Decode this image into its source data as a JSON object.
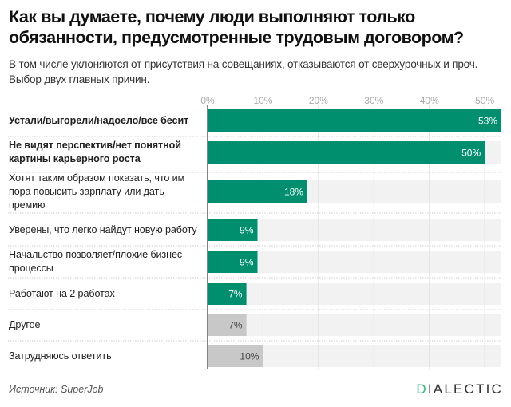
{
  "title": "Как вы думаете, почему люди выполняют только обязанности, предусмотренные трудовым договором?",
  "subtitle": "В том числе уклоняются от присутствия на совещаниях, отказываются от сверхурочных и проч. Выбор двух главных причин.",
  "source": "Источник: SuperJob",
  "logo": {
    "first_letter": "D",
    "rest": "IALECTIC"
  },
  "colors": {
    "primary": "#008f6e",
    "muted": "#c8c8c8",
    "track": "#f2f2f2",
    "grid": "#e0e0e0",
    "logo_accent": "#2fbf78"
  },
  "chart_data": {
    "type": "bar",
    "orientation": "horizontal",
    "title": "Как вы думаете, почему люди выполняют только обязанности, предусмотренные трудовым договором?",
    "xlabel": "",
    "ylabel": "",
    "xlim": [
      0,
      53
    ],
    "x_ticks": [
      0,
      10,
      20,
      30,
      40,
      50
    ],
    "x_tick_labels": [
      "0%",
      "10%",
      "20%",
      "30%",
      "40%",
      "50%"
    ],
    "grid": true,
    "categories": [
      "Устали/выгорели/надоело/все бесит",
      "Не видят перспектив/нет понятной картины карьерного роста",
      "Хотят таким образом показать, что им пора повысить зарплату или дать премию",
      "Уверены, что легко найдут новую работу",
      "Начальство позволяет/плохие бизнес-процессы",
      "Работают на 2 работах",
      "Другое",
      "Затрудняюсь ответить"
    ],
    "label_lines": [
      [
        "Устали/выгорели/надоело/все бесит"
      ],
      [
        "Не видят перспектив/нет понятной",
        "картины карьерного роста"
      ],
      [
        "Хотят таким образом показать, что им",
        "пора повысить зарплату или дать",
        "премию"
      ],
      [
        "Уверены, что легко найдут новую работу"
      ],
      [
        "Начальство позволяет/плохие бизнес-",
        "процессы"
      ],
      [
        "Работают на 2 работах"
      ],
      [
        "Другое"
      ],
      [
        "Затрудняюсь ответить"
      ]
    ],
    "bold": [
      true,
      true,
      false,
      false,
      false,
      false,
      false,
      false
    ],
    "values": [
      53,
      50,
      18,
      9,
      9,
      7,
      7,
      10
    ],
    "value_labels": [
      "53%",
      "50%",
      "18%",
      "9%",
      "9%",
      "7%",
      "7%",
      "10%"
    ],
    "highlight": [
      true,
      true,
      true,
      true,
      true,
      true,
      false,
      false
    ]
  }
}
